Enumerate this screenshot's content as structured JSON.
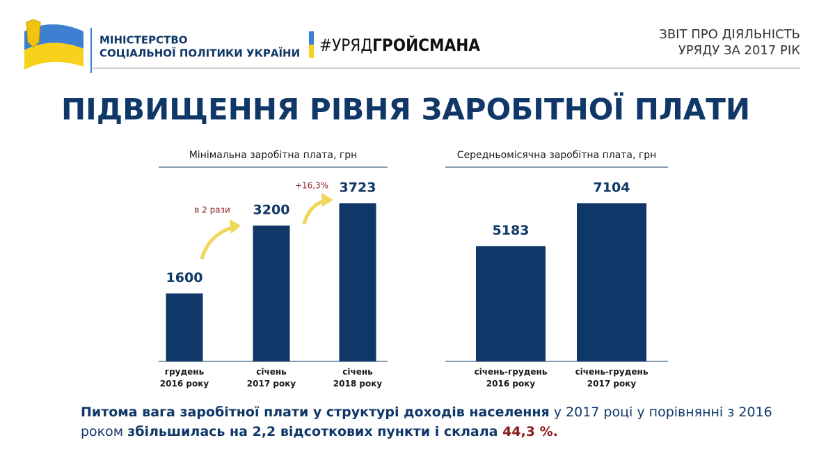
{
  "header": {
    "ministry": [
      "МІНІСТЕРСТВО",
      "СОЦІАЛЬНОЇ ПОЛІТИКИ УКРАЇНИ"
    ],
    "hashtag_prefix": "#УРЯД",
    "hashtag_name": "ГРОЙСМАНА",
    "report": [
      "ЗВІТ ПРО ДІЯЛЬНІСТЬ",
      "УРЯДУ ЗА 2017 РІК"
    ]
  },
  "title": "ПІДВИЩЕННЯ РІВНЯ ЗАРОБІТНОЇ ПЛАТИ",
  "chart_data": [
    {
      "type": "bar",
      "title": "Мінімальна заробітна плата, грн",
      "categories": [
        "грудень\n2016 року",
        "січень\n2017 року",
        "січень\n2018 року"
      ],
      "values": [
        1600,
        3200,
        3723
      ],
      "color": "#0f3768",
      "annotations": [
        "в 2 рази",
        "+16,3%"
      ]
    },
    {
      "type": "bar",
      "title": "Середньомісячна заробітна плата, грн",
      "categories": [
        "січень-грудень\n2016 року",
        "січень-грудень\n2017 року"
      ],
      "values": [
        5183,
        7104
      ],
      "color": "#0f3768"
    }
  ],
  "footer": {
    "parts": [
      "Питома вага заробітної плати у структурі доходів населення",
      " у 2017 році у порівнянні з 2016 роком ",
      "збільшилась на 2,2 відсоткових пункти і склала ",
      "44,3 %."
    ]
  }
}
